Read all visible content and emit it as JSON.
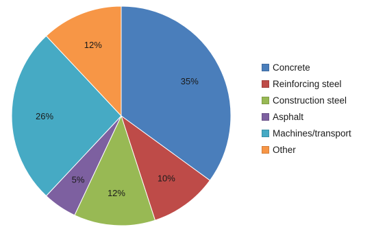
{
  "chart_data": {
    "type": "pie",
    "categories": [
      "Concrete",
      "Reinforcing steel",
      "Construction steel",
      "Asphalt",
      "Machines/transport",
      "Other"
    ],
    "values": [
      35,
      10,
      12,
      5,
      26,
      12
    ],
    "value_labels": [
      "35%",
      "10%",
      "12%",
      "5%",
      "26%",
      "12%"
    ],
    "colors": [
      "#4a7ebb",
      "#be4b48",
      "#98b954",
      "#7d60a0",
      "#46aac4",
      "#f79646"
    ],
    "start_angle": "12 o'clock",
    "direction": "clockwise",
    "legend_position": "right"
  }
}
